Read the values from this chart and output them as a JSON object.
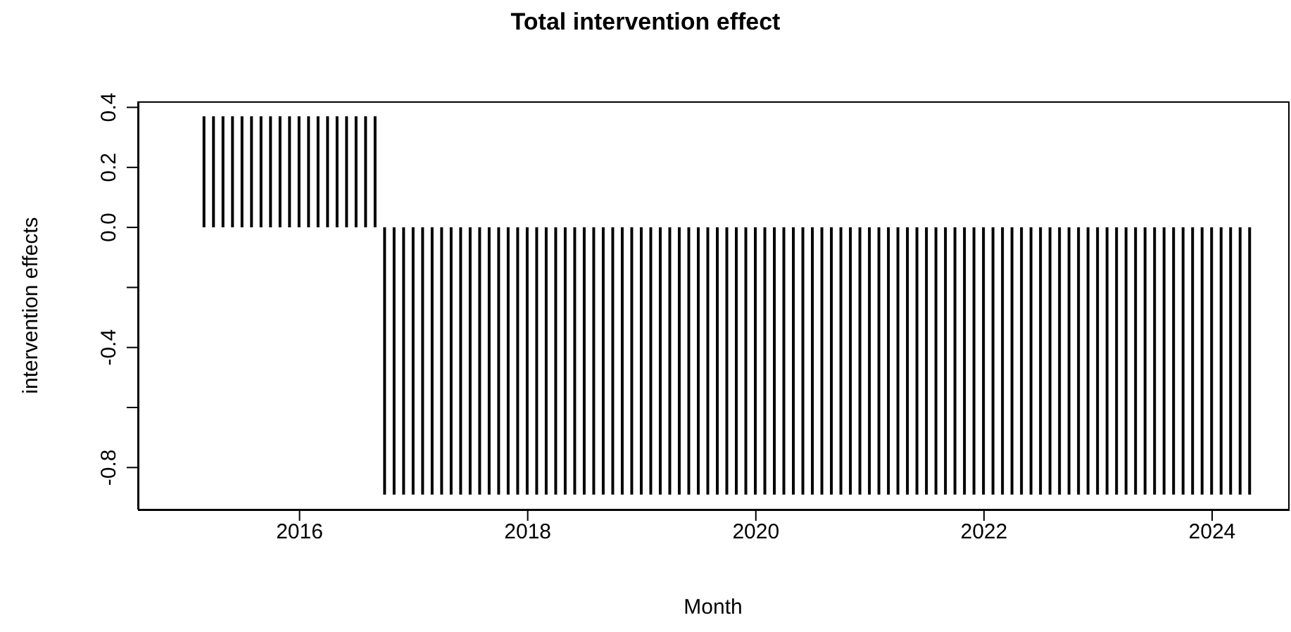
{
  "chart_data": {
    "type": "bar",
    "title": "Total intervention effect",
    "xlabel": "Month",
    "ylabel": "intervention effects",
    "x": [
      "2015-01",
      "2015-02",
      "2015-03",
      "2015-04",
      "2015-05",
      "2015-06",
      "2015-07",
      "2015-08",
      "2015-09",
      "2015-10",
      "2015-11",
      "2015-12",
      "2016-01",
      "2016-02",
      "2016-03",
      "2016-04",
      "2016-05",
      "2016-06",
      "2016-07",
      "2016-08",
      "2016-09",
      "2016-10",
      "2016-11",
      "2016-12",
      "2017-01",
      "2017-02",
      "2017-03",
      "2017-04",
      "2017-05",
      "2017-06",
      "2017-07",
      "2017-08",
      "2017-09",
      "2017-10",
      "2017-11",
      "2017-12",
      "2018-01",
      "2018-02",
      "2018-03",
      "2018-04",
      "2018-05",
      "2018-06",
      "2018-07",
      "2018-08",
      "2018-09",
      "2018-10",
      "2018-11",
      "2018-12",
      "2019-01",
      "2019-02",
      "2019-03",
      "2019-04",
      "2019-05",
      "2019-06",
      "2019-07",
      "2019-08",
      "2019-09",
      "2019-10",
      "2019-11",
      "2019-12",
      "2020-01",
      "2020-02",
      "2020-03",
      "2020-04",
      "2020-05",
      "2020-06",
      "2020-07",
      "2020-08",
      "2020-09",
      "2020-10",
      "2020-11",
      "2020-12",
      "2021-01",
      "2021-02",
      "2021-03",
      "2021-04",
      "2021-05",
      "2021-06",
      "2021-07",
      "2021-08",
      "2021-09",
      "2021-10",
      "2021-11",
      "2021-12",
      "2022-01",
      "2022-02",
      "2022-03",
      "2022-04",
      "2022-05",
      "2022-06",
      "2022-07",
      "2022-08",
      "2022-09",
      "2022-10",
      "2022-11",
      "2022-12",
      "2023-01",
      "2023-02",
      "2023-03",
      "2023-04",
      "2023-05",
      "2023-06",
      "2023-07",
      "2023-08",
      "2023-09",
      "2023-10",
      "2023-11",
      "2023-12",
      "2024-01",
      "2024-02",
      "2024-03",
      "2024-04",
      "2024-05"
    ],
    "values": [
      0,
      0,
      0.37,
      0.37,
      0.37,
      0.37,
      0.37,
      0.37,
      0.37,
      0.37,
      0.37,
      0.37,
      0.37,
      0.37,
      0.37,
      0.37,
      0.37,
      0.37,
      0.37,
      0.37,
      0.37,
      -0.89,
      -0.89,
      -0.89,
      -0.89,
      -0.89,
      -0.89,
      -0.89,
      -0.89,
      -0.89,
      -0.89,
      -0.89,
      -0.89,
      -0.89,
      -0.89,
      -0.89,
      -0.89,
      -0.89,
      -0.89,
      -0.89,
      -0.89,
      -0.89,
      -0.89,
      -0.89,
      -0.89,
      -0.89,
      -0.89,
      -0.89,
      -0.89,
      -0.89,
      -0.89,
      -0.89,
      -0.89,
      -0.89,
      -0.89,
      -0.89,
      -0.89,
      -0.89,
      -0.89,
      -0.89,
      -0.89,
      -0.89,
      -0.89,
      -0.89,
      -0.89,
      -0.89,
      -0.89,
      -0.89,
      -0.89,
      -0.89,
      -0.89,
      -0.89,
      -0.89,
      -0.89,
      -0.89,
      -0.89,
      -0.89,
      -0.89,
      -0.89,
      -0.89,
      -0.89,
      -0.89,
      -0.89,
      -0.89,
      -0.89,
      -0.89,
      -0.89,
      -0.89,
      -0.89,
      -0.89,
      -0.89,
      -0.89,
      -0.89,
      -0.89,
      -0.89,
      -0.89,
      -0.89,
      -0.89,
      -0.89,
      -0.89,
      -0.89,
      -0.89,
      -0.89,
      -0.89,
      -0.89,
      -0.89,
      -0.89,
      -0.89,
      -0.89,
      -0.89,
      -0.89,
      -0.89,
      -0.89
    ],
    "color": "#000000",
    "xlim": [
      "2014-08",
      "2024-09"
    ],
    "xticks": [
      {
        "value": "2016-01",
        "label": "2016"
      },
      {
        "value": "2018-01",
        "label": "2018"
      },
      {
        "value": "2020-01",
        "label": "2020"
      },
      {
        "value": "2022-01",
        "label": "2022"
      },
      {
        "value": "2024-01",
        "label": "2024"
      }
    ],
    "ylim": [
      -0.94,
      0.42
    ],
    "yticks": [
      {
        "value": -0.8,
        "label": "-0.8"
      },
      {
        "value": -0.6,
        "label": null
      },
      {
        "value": -0.4,
        "label": "-0.4"
      },
      {
        "value": -0.2,
        "label": null
      },
      {
        "value": 0,
        "label": "0.0"
      },
      {
        "value": 0.2,
        "label": "0.2"
      },
      {
        "value": 0.4,
        "label": "0.4"
      }
    ],
    "grid": false,
    "legend": false
  }
}
